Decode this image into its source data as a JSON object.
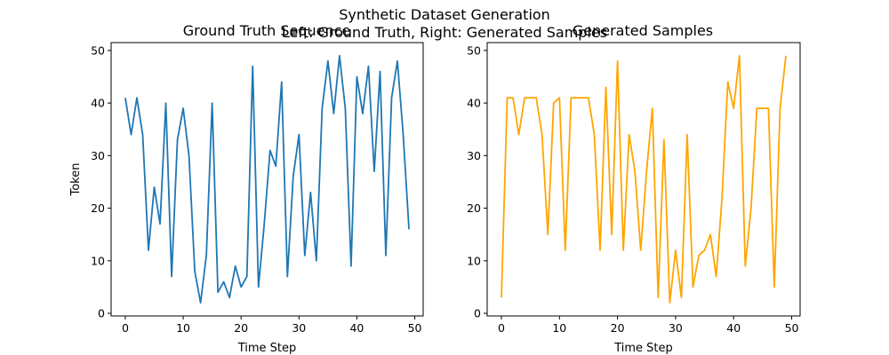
{
  "figure": {
    "suptitle_line1": "Synthetic Dataset Generation",
    "suptitle_line2": "Left: Ground Truth, Right: Generated Samples"
  },
  "chart_data": [
    {
      "type": "line",
      "title": "Ground Truth Sequence",
      "xlabel": "Time Step",
      "ylabel": "Token",
      "xlim": [
        -2.45,
        51.45
      ],
      "ylim": [
        -0.5,
        51.5
      ],
      "xticks": [
        0,
        10,
        20,
        30,
        40,
        50
      ],
      "yticks": [
        0,
        10,
        20,
        30,
        40,
        50
      ],
      "color": "#1f77b4",
      "x": [
        0,
        1,
        2,
        3,
        4,
        5,
        6,
        7,
        8,
        9,
        10,
        11,
        12,
        13,
        14,
        15,
        16,
        17,
        18,
        19,
        20,
        21,
        22,
        23,
        24,
        25,
        26,
        27,
        28,
        29,
        30,
        31,
        32,
        33,
        34,
        35,
        36,
        37,
        38,
        39,
        40,
        41,
        42,
        43,
        44,
        45,
        46,
        47,
        48,
        49
      ],
      "y": [
        41,
        34,
        41,
        34,
        12,
        24,
        17,
        40,
        7,
        33,
        39,
        30,
        8,
        2,
        11,
        40,
        4,
        6,
        3,
        9,
        5,
        7,
        47,
        5,
        17,
        31,
        28,
        44,
        7,
        26,
        34,
        11,
        23,
        10,
        39,
        48,
        38,
        49,
        39,
        9,
        45,
        38,
        47,
        27,
        46,
        11,
        41,
        48,
        34,
        16
      ]
    },
    {
      "type": "line",
      "title": "Generated Samples",
      "xlabel": "Time Step",
      "ylabel": "",
      "xlim": [
        -2.45,
        51.45
      ],
      "ylim": [
        -0.5,
        51.5
      ],
      "xticks": [
        0,
        10,
        20,
        30,
        40,
        50
      ],
      "yticks": [
        0,
        10,
        20,
        30,
        40,
        50
      ],
      "color": "#ffa500",
      "x": [
        0,
        1,
        2,
        3,
        4,
        5,
        6,
        7,
        8,
        9,
        10,
        11,
        12,
        13,
        14,
        15,
        16,
        17,
        18,
        19,
        20,
        21,
        22,
        23,
        24,
        25,
        26,
        27,
        28,
        29,
        30,
        31,
        32,
        33,
        34,
        35,
        36,
        37,
        38,
        39,
        40,
        41,
        42,
        43,
        44,
        45,
        46,
        47,
        48,
        49
      ],
      "y": [
        3,
        41,
        41,
        34,
        41,
        41,
        41,
        34,
        15,
        40,
        41,
        12,
        41,
        41,
        41,
        41,
        34,
        12,
        43,
        15,
        48,
        12,
        34,
        27,
        12,
        27,
        39,
        3,
        33,
        2,
        12,
        3,
        34,
        5,
        11,
        12,
        15,
        7,
        22,
        44,
        39,
        49,
        9,
        20,
        39,
        39,
        39,
        5,
        39,
        49
      ]
    }
  ]
}
